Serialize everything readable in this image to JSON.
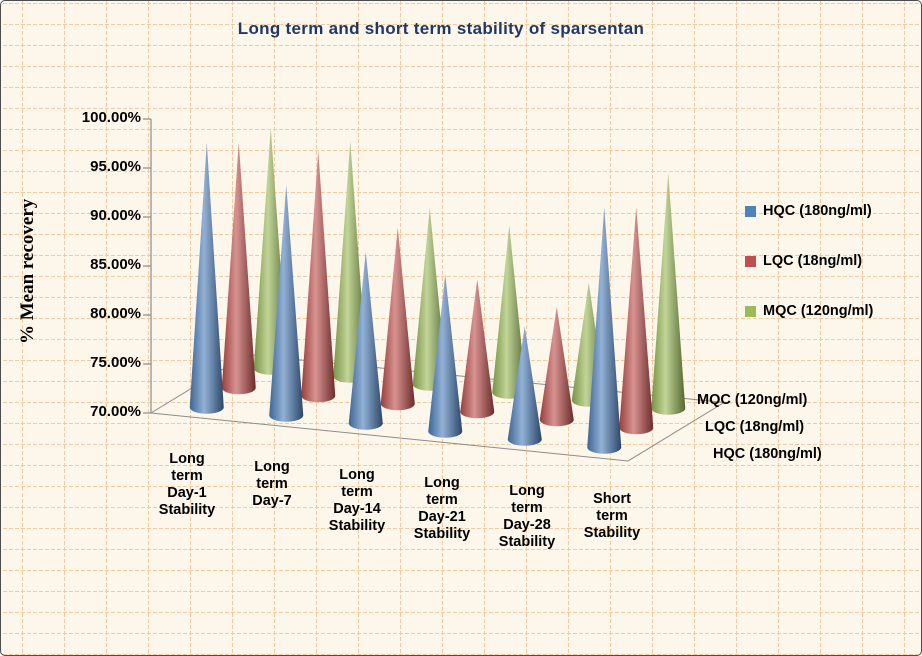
{
  "colors": {
    "background": "#FDF6EA",
    "grid_pattern": "#EFCBA3",
    "title_text": "#1F3864",
    "axis_line": "#8C8C8C",
    "series_blue": "#4F81BD",
    "series_red": "#C0504D",
    "series_green": "#9BBB59"
  },
  "chart_data": {
    "type": "bar",
    "variant": "3d-cone",
    "title": "Long term  and short term stability of sparsentan",
    "ylabel": "% Mean recovery",
    "xlabel": "",
    "ylim": [
      70,
      100
    ],
    "ytick_labels": [
      "70.00%",
      "75.00%",
      "80.00%",
      "85.00%",
      "90.00%",
      "95.00%",
      "100.00%"
    ],
    "grid": false,
    "legend_position": "right",
    "categories": [
      "Long term Day-1 Stability",
      "Long term Day-7",
      "Long term Day-14 Stability",
      "Long term Day-21 Stability",
      "Long term Day-28 Stability",
      "Short term Stability"
    ],
    "category_display": [
      "Long\nterm\nDay-1\nStability",
      "Long\nterm\nDay-7",
      "Long\nterm\nDay-14\nStability",
      "Long\nterm\nDay-21\nStability",
      "Long\nterm\nDay-28\nStability",
      "Short\nterm\nStability"
    ],
    "series": [
      {
        "name": "HQC (180ng/ml)",
        "color": "#4F81BD",
        "values": [
          97.0,
          93.5,
          87.5,
          86.0,
          81.5,
          94.5
        ]
      },
      {
        "name": "LQC (18ng/ml)",
        "color": "#C0504D",
        "values": [
          95.0,
          95.0,
          88.0,
          83.5,
          81.5,
          92.5
        ]
      },
      {
        "name": "MQC (120ng/ml)",
        "color": "#9BBB59",
        "values": [
          94.5,
          94.0,
          88.0,
          87.0,
          82.0,
          94.0
        ]
      }
    ],
    "depth_axis_labels": [
      "MQC (120ng/ml)",
      "LQC (18ng/ml)",
      "HQC (180ng/ml)"
    ]
  }
}
